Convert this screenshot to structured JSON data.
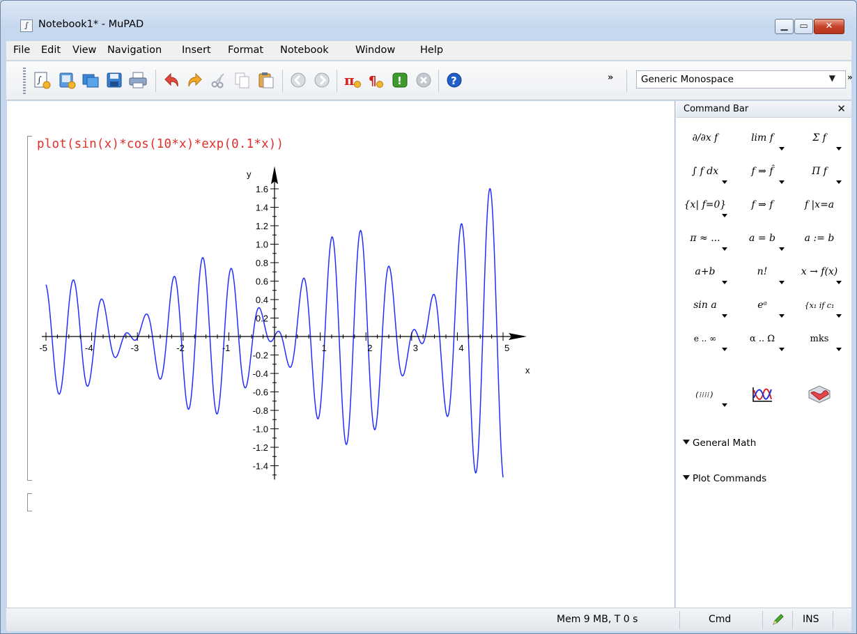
{
  "window": {
    "title": "Notebook1* - MuPAD",
    "app_icon_glyph": "∫",
    "controls": {
      "minimize": "▁",
      "maximize": "▭",
      "close": "✕"
    }
  },
  "menubar": {
    "items": [
      "File",
      "Edit",
      "View",
      "Navigation",
      "Insert",
      "Format",
      "Notebook",
      "Window",
      "Help"
    ]
  },
  "toolbar": {
    "buttons": [
      "new-notebook-icon",
      "new-editor-icon",
      "open-icon",
      "save-icon",
      "print-icon",
      "undo-icon",
      "redo-icon",
      "cut-icon",
      "copy-icon",
      "paste-icon",
      "back-icon",
      "forward-icon",
      "pi-icon",
      "paragraph-icon",
      "evaluate-icon",
      "stop-icon",
      "help-icon"
    ],
    "overflow": "»",
    "font_select": {
      "value": "Generic Monospace"
    },
    "font_overflow": "»"
  },
  "notebook": {
    "input": "plot(sin(x)*cos(10*x)*exp(0.1*x))",
    "plot": {
      "function": "sin(x)*cos(10*x)*exp(0.1*x)",
      "x_axis_label": "x",
      "y_axis_label": "y",
      "xlim": [
        -5,
        5
      ],
      "x_ticks": [
        "-5",
        "-4",
        "-3",
        "-2",
        "-1",
        "1",
        "2",
        "3",
        "4",
        "5"
      ],
      "y_ticks": [
        "1.6",
        "1.4",
        "1.2",
        "1.0",
        "0.8",
        "0.6",
        "0.4",
        "0.2",
        "-0.2",
        "-0.4",
        "-0.6",
        "-0.8",
        "-1.0",
        "-1.2",
        "-1.4"
      ],
      "curve_color": "#1f2dff"
    }
  },
  "command_bar": {
    "title": "Command Bar",
    "close_glyph": "✕",
    "buttons": [
      [
        "∂/∂x f",
        "lim f",
        "Σ f"
      ],
      [
        "∫ f dx",
        "f ⇒ f̂",
        "Π f"
      ],
      [
        "{x| f=0}",
        "f ⇒ f",
        "f |x=a"
      ],
      [
        "π ≈ ...",
        "a = b",
        "a := b"
      ],
      [
        "a+b",
        "n!",
        "x → f(x)"
      ],
      [
        "sin a",
        "eᵃ",
        "{x₁ if c₁"
      ],
      [
        "e .. ∞",
        "α .. Ω",
        "mks"
      ]
    ],
    "icon_buttons": [
      "matrix-icon",
      "plot-2d-icon",
      "plot-3d-icon"
    ],
    "sections": [
      "General Math",
      "Plot Commands"
    ]
  },
  "statusbar": {
    "memory": "Mem 9 MB, T 0 s",
    "mode": "Cmd",
    "insert": "INS"
  }
}
